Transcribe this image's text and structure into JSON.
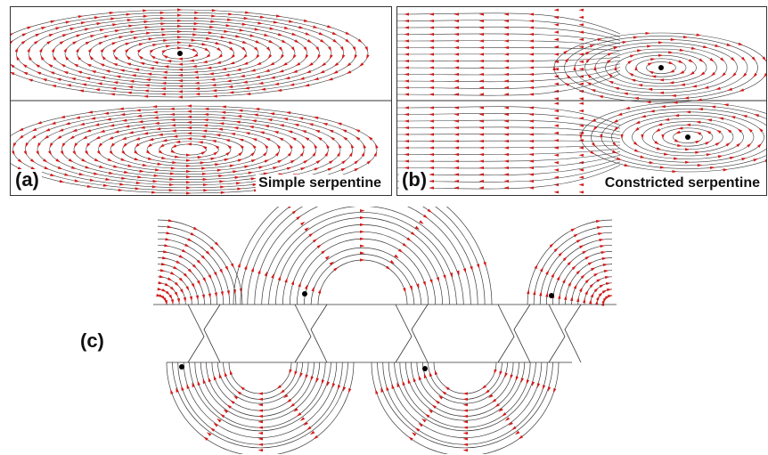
{
  "panels": {
    "a": {
      "letter": "(a)",
      "caption": "Simple serpentine"
    },
    "b": {
      "letter": "(b)",
      "caption": "Constricted serpentine"
    },
    "c": {
      "letter": "(c)"
    }
  },
  "colors": {
    "streamline": "#3a3a3a",
    "arrow": "#d11a1a",
    "vortex_core": "#000000",
    "border": "#333333"
  }
}
